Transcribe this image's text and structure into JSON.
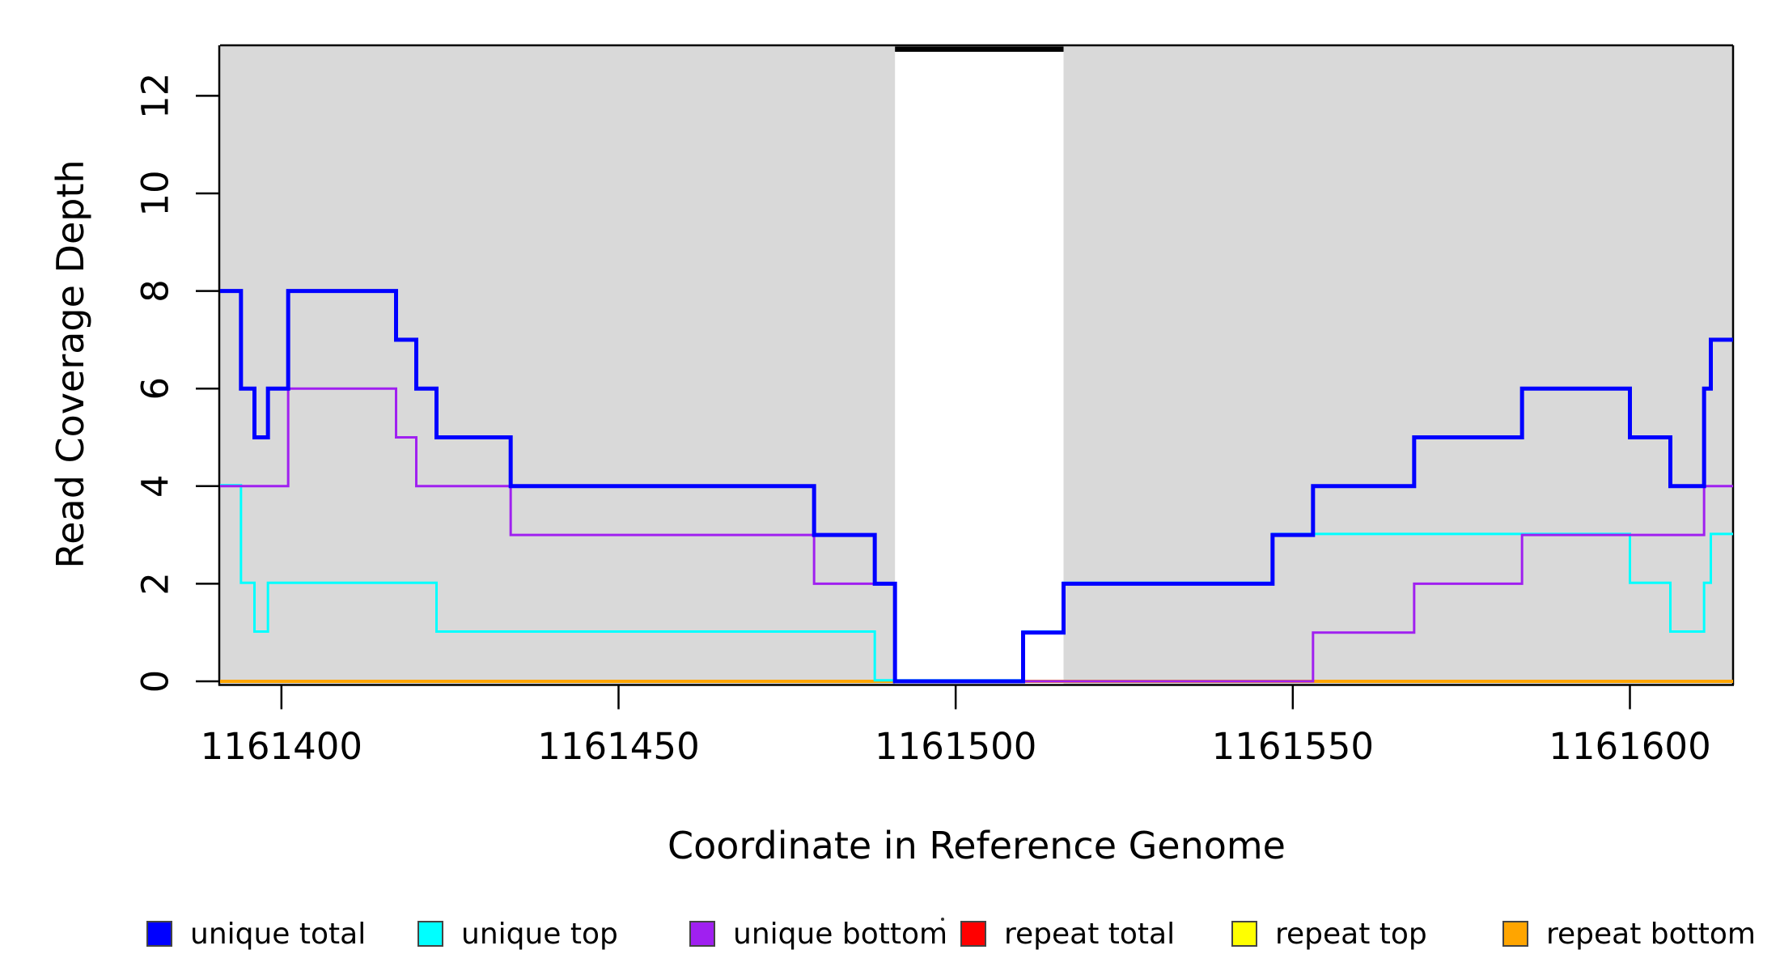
{
  "figure": {
    "background_color": "#ffffff",
    "plot_background_shade": "#d9d9d9"
  },
  "chart_data": {
    "type": "line",
    "subtype": "step-coverage",
    "title": "",
    "xlabel": "Coordinate in Reference Genome",
    "ylabel": "Read Coverage Depth",
    "xlim": [
      1161390.9,
      1161615.3
    ],
    "ylim": [
      0,
      13.05
    ],
    "x_ticks": [
      1161400,
      1161450,
      1161500,
      1161550,
      1161600
    ],
    "y_ticks": [
      0,
      2,
      4,
      6,
      8,
      10,
      12
    ],
    "grid": false,
    "legend_position": "bottom",
    "shaded_regions": {
      "color": "#d9d9d9",
      "regions": [
        [
          1161390.9,
          1161491
        ],
        [
          1161516,
          1161615.3
        ]
      ]
    },
    "gap_marker": {
      "color": "#000000",
      "x": [
        1161491,
        1161516
      ],
      "note": "white unshaded band with thick black bar at top of plot"
    },
    "series": [
      {
        "name": "unique total",
        "color": "#0000ff",
        "line_width": 5,
        "steps": [
          [
            1161390.9,
            8
          ],
          [
            1161394,
            6
          ],
          [
            1161396,
            5
          ],
          [
            1161398,
            6
          ],
          [
            1161401,
            8
          ],
          [
            1161417,
            7
          ],
          [
            1161420,
            6
          ],
          [
            1161423,
            5
          ],
          [
            1161434,
            4
          ],
          [
            1161479,
            3
          ],
          [
            1161488,
            2
          ],
          [
            1161491,
            0
          ],
          [
            1161510,
            1
          ],
          [
            1161516,
            2
          ],
          [
            1161547,
            3
          ],
          [
            1161553,
            4
          ],
          [
            1161568,
            5
          ],
          [
            1161584,
            6
          ],
          [
            1161600,
            5
          ],
          [
            1161606,
            4
          ],
          [
            1161611,
            6
          ],
          [
            1161612,
            7
          ]
        ]
      },
      {
        "name": "unique top",
        "color": "#00ffff",
        "line_width": 3,
        "steps": [
          [
            1161390.9,
            4
          ],
          [
            1161394,
            2
          ],
          [
            1161396,
            1
          ],
          [
            1161398,
            2
          ],
          [
            1161423,
            1
          ],
          [
            1161488,
            0
          ],
          [
            1161510,
            1
          ],
          [
            1161516,
            2
          ],
          [
            1161547,
            3
          ],
          [
            1161600,
            2
          ],
          [
            1161606,
            1
          ],
          [
            1161611,
            2
          ],
          [
            1161612,
            3
          ]
        ]
      },
      {
        "name": "unique bottom",
        "color": "#a020f0",
        "line_width": 3,
        "steps": [
          [
            1161390.9,
            4
          ],
          [
            1161401,
            6
          ],
          [
            1161417,
            5
          ],
          [
            1161420,
            4
          ],
          [
            1161434,
            3
          ],
          [
            1161479,
            2
          ],
          [
            1161491,
            0
          ],
          [
            1161553,
            1
          ],
          [
            1161568,
            2
          ],
          [
            1161584,
            3
          ],
          [
            1161611,
            4
          ]
        ]
      },
      {
        "name": "repeat total",
        "color": "#ff0000",
        "line_width": 3,
        "steps": [
          [
            1161390.9,
            0
          ]
        ]
      },
      {
        "name": "repeat top",
        "color": "#ffff00",
        "line_width": 3,
        "steps": [
          [
            1161390.9,
            0
          ]
        ]
      },
      {
        "name": "repeat bottom",
        "color": "#ffa500",
        "line_width": 4,
        "steps": [
          [
            1161390.9,
            0
          ]
        ]
      }
    ],
    "paint_order": [
      3,
      4,
      5,
      1,
      2,
      0
    ]
  },
  "legend": {
    "items": [
      {
        "label": "unique total",
        "color": "#0000ff"
      },
      {
        "label": "unique top",
        "color": "#00ffff"
      },
      {
        "label": "unique bottom",
        "color": "#a020f0"
      },
      {
        "label": "repeat total",
        "color": "#ff0000"
      },
      {
        "label": "repeat top",
        "color": "#ffff00"
      },
      {
        "label": "repeat bottom",
        "color": "#ffa500"
      }
    ]
  }
}
